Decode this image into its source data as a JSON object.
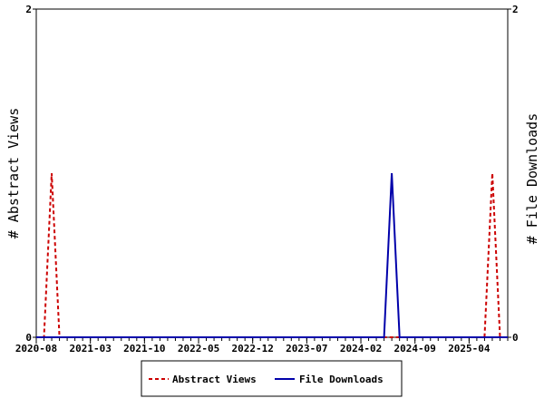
{
  "chart_data": {
    "type": "line",
    "x_type": "month",
    "x_range": [
      "2020-08",
      "2025-09"
    ],
    "x_tick_labels": [
      "2020-08",
      "2021-03",
      "2021-10",
      "2022-05",
      "2022-12",
      "2023-07",
      "2024-02",
      "2024-09",
      "2025-04"
    ],
    "y_left": {
      "label": "# Abstract Views",
      "range": [
        0,
        2
      ],
      "tick_labels": [
        "0",
        "2"
      ]
    },
    "y_right": {
      "label": "# File Downloads",
      "range": [
        0,
        2
      ],
      "tick_labels": [
        "0",
        "2"
      ]
    },
    "grid": false,
    "legend_placement": "bottom-center",
    "series": [
      {
        "name": "Abstract Views",
        "axis": "left",
        "color": "#cc0000",
        "line_style": "dashed",
        "x": [
          "2020-08",
          "2020-09",
          "2020-10",
          "2020-11",
          "2020-12",
          "2021-01",
          "2024-11",
          "2024-12",
          "2025-01",
          "2025-02",
          "2025-03",
          "2025-04",
          "2025-05",
          "2025-06",
          "2025-07",
          "2025-08",
          "2025-09"
        ],
        "y": [
          0,
          0,
          1,
          0,
          0,
          0,
          0,
          0,
          0,
          0,
          0,
          0,
          0,
          0,
          1,
          0,
          0
        ]
      },
      {
        "name": "File Downloads",
        "axis": "right",
        "color": "#0000aa",
        "line_style": "solid",
        "x": [
          "2020-08",
          "2024-05",
          "2024-06",
          "2024-07",
          "2025-09"
        ],
        "y": [
          0,
          0,
          1,
          0,
          0
        ]
      }
    ]
  }
}
